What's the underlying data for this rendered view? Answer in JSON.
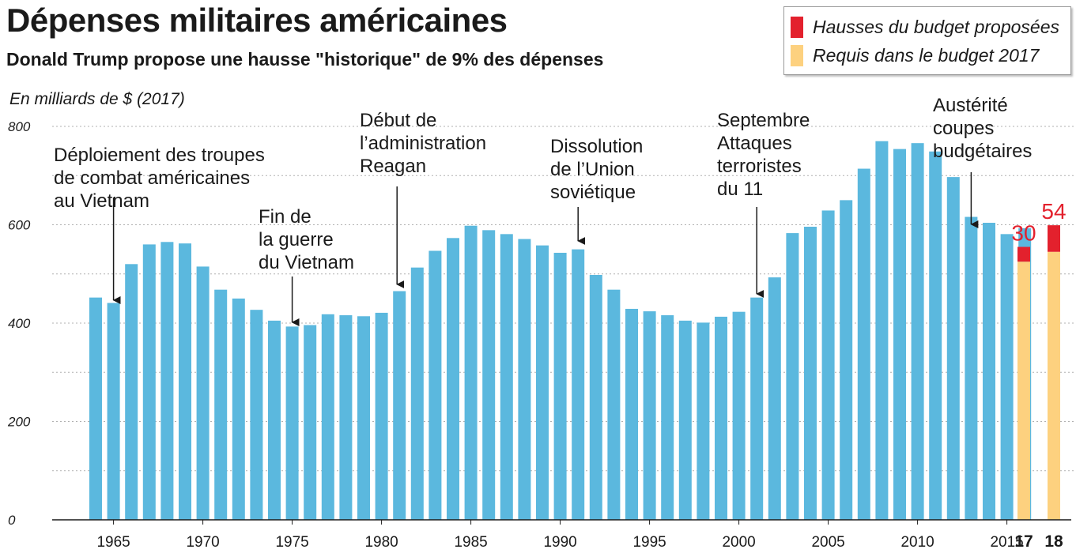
{
  "chart_data": {
    "type": "bar",
    "title": "Dépenses militaires américaines",
    "subtitle": "Donald Trump propose une hausse \"historique\" de 9% des dépenses",
    "ylabel": "En milliards de $ (2017)",
    "ylim": [
      0,
      800
    ],
    "yticks": [
      0,
      200,
      400,
      600,
      800
    ],
    "grid": true,
    "legend_position": "top-right",
    "colors": {
      "bars": "#5bb8de",
      "required": "#fdd17f",
      "increase": "#e3212d",
      "grid": "#b0b0b0"
    },
    "x": [
      1964,
      1965,
      1966,
      1967,
      1968,
      1969,
      1970,
      1971,
      1972,
      1973,
      1974,
      1975,
      1976,
      1977,
      1978,
      1979,
      1980,
      1981,
      1982,
      1983,
      1984,
      1985,
      1986,
      1987,
      1988,
      1989,
      1990,
      1991,
      1992,
      1993,
      1994,
      1995,
      1996,
      1997,
      1998,
      1999,
      2000,
      2001,
      2002,
      2003,
      2004,
      2005,
      2006,
      2007,
      2008,
      2009,
      2010,
      2011,
      2012,
      2013,
      2014,
      2015,
      2016
    ],
    "values": [
      452,
      441,
      520,
      560,
      565,
      562,
      515,
      468,
      450,
      427,
      405,
      393,
      396,
      418,
      416,
      414,
      421,
      465,
      513,
      547,
      573,
      598,
      589,
      581,
      571,
      558,
      543,
      550,
      498,
      468,
      429,
      424,
      416,
      405,
      401,
      413,
      423,
      452,
      493,
      583,
      596,
      629,
      650,
      714,
      770,
      754,
      766,
      749,
      697,
      616,
      604,
      581,
      593
    ],
    "xtick_labels": [
      "1965",
      "1970",
      "1975",
      "1980",
      "1985",
      "1990",
      "1995",
      "2000",
      "2005",
      "2010",
      "2015"
    ],
    "xtick_years": [
      1965,
      1970,
      1975,
      1980,
      1985,
      1990,
      1995,
      2000,
      2005,
      2010,
      2015
    ],
    "proposed": [
      {
        "label": "17",
        "required": 525,
        "increase": 30,
        "increase_label": "30"
      },
      {
        "label": "18",
        "required": 545,
        "increase": 54,
        "increase_label": "54"
      }
    ],
    "series": [
      {
        "name": "Hausses du budget proposées"
      },
      {
        "name": "Requis dans le budget 2017"
      }
    ],
    "annotations": [
      {
        "lines": [
          "Déploiement des troupes",
          "de combat américaines",
          "au Vietnam"
        ],
        "year": 1965
      },
      {
        "lines": [
          "Fin de",
          "la guerre",
          "du Vietnam"
        ],
        "year": 1975
      },
      {
        "lines": [
          "Début de",
          "l’administration",
          "Reagan"
        ],
        "year": 1981
      },
      {
        "lines": [
          "Dissolution",
          "de l’Union",
          "soviétique"
        ],
        "year": 1991
      },
      {
        "lines": [
          "Septembre",
          "Attaques",
          "terroristes",
          "du 11"
        ],
        "year": 2001
      },
      {
        "lines": [
          "Austérité",
          "coupes",
          "budgétaires"
        ],
        "year": 2013
      }
    ]
  }
}
